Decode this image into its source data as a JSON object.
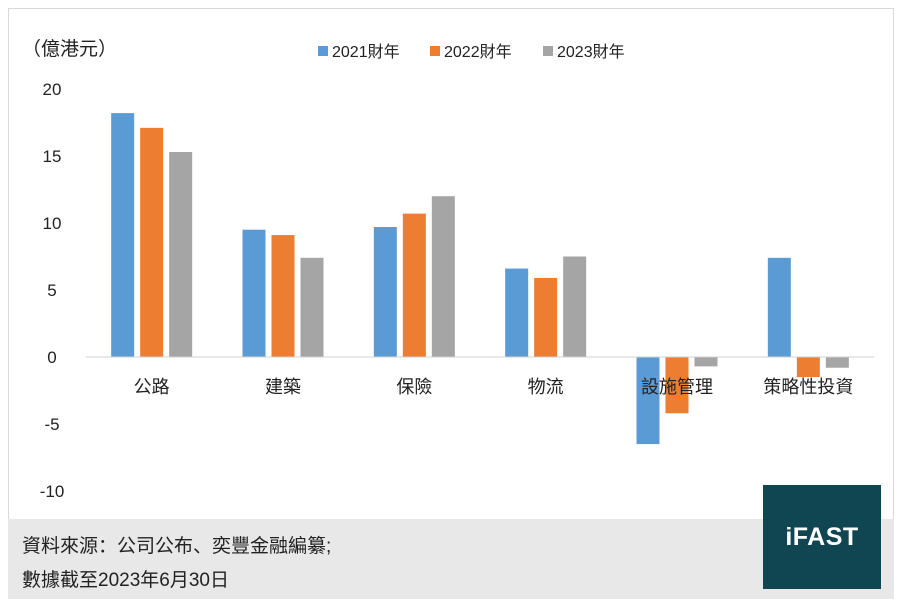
{
  "chart_data": {
    "type": "bar",
    "unit_label": "（億港元）",
    "categories": [
      "公路",
      "建築",
      "保險",
      "物流",
      "設施管理",
      "策略性投資"
    ],
    "series": [
      {
        "name": "2021財年",
        "color": "#5b9bd5",
        "values": [
          18.2,
          9.5,
          9.7,
          6.6,
          -6.5,
          7.4
        ]
      },
      {
        "name": "2022財年",
        "color": "#ed7d31",
        "values": [
          17.1,
          9.1,
          10.7,
          5.9,
          -4.2,
          -1.5
        ]
      },
      {
        "name": "2023財年",
        "color": "#a5a5a5",
        "values": [
          15.3,
          7.4,
          12.0,
          7.5,
          -0.7,
          -0.8
        ]
      }
    ],
    "yticks": [
      20,
      15,
      10,
      5,
      0,
      -5,
      -10
    ],
    "ylim": [
      -10,
      20
    ],
    "legend_position": "top",
    "grid": false
  },
  "footer": {
    "line1": "資料來源：公司公布、奕豐金融編纂;",
    "line2": "數據截至2023年6月30日"
  },
  "logo": {
    "text": "iFAST",
    "bg": "#0f4652"
  }
}
